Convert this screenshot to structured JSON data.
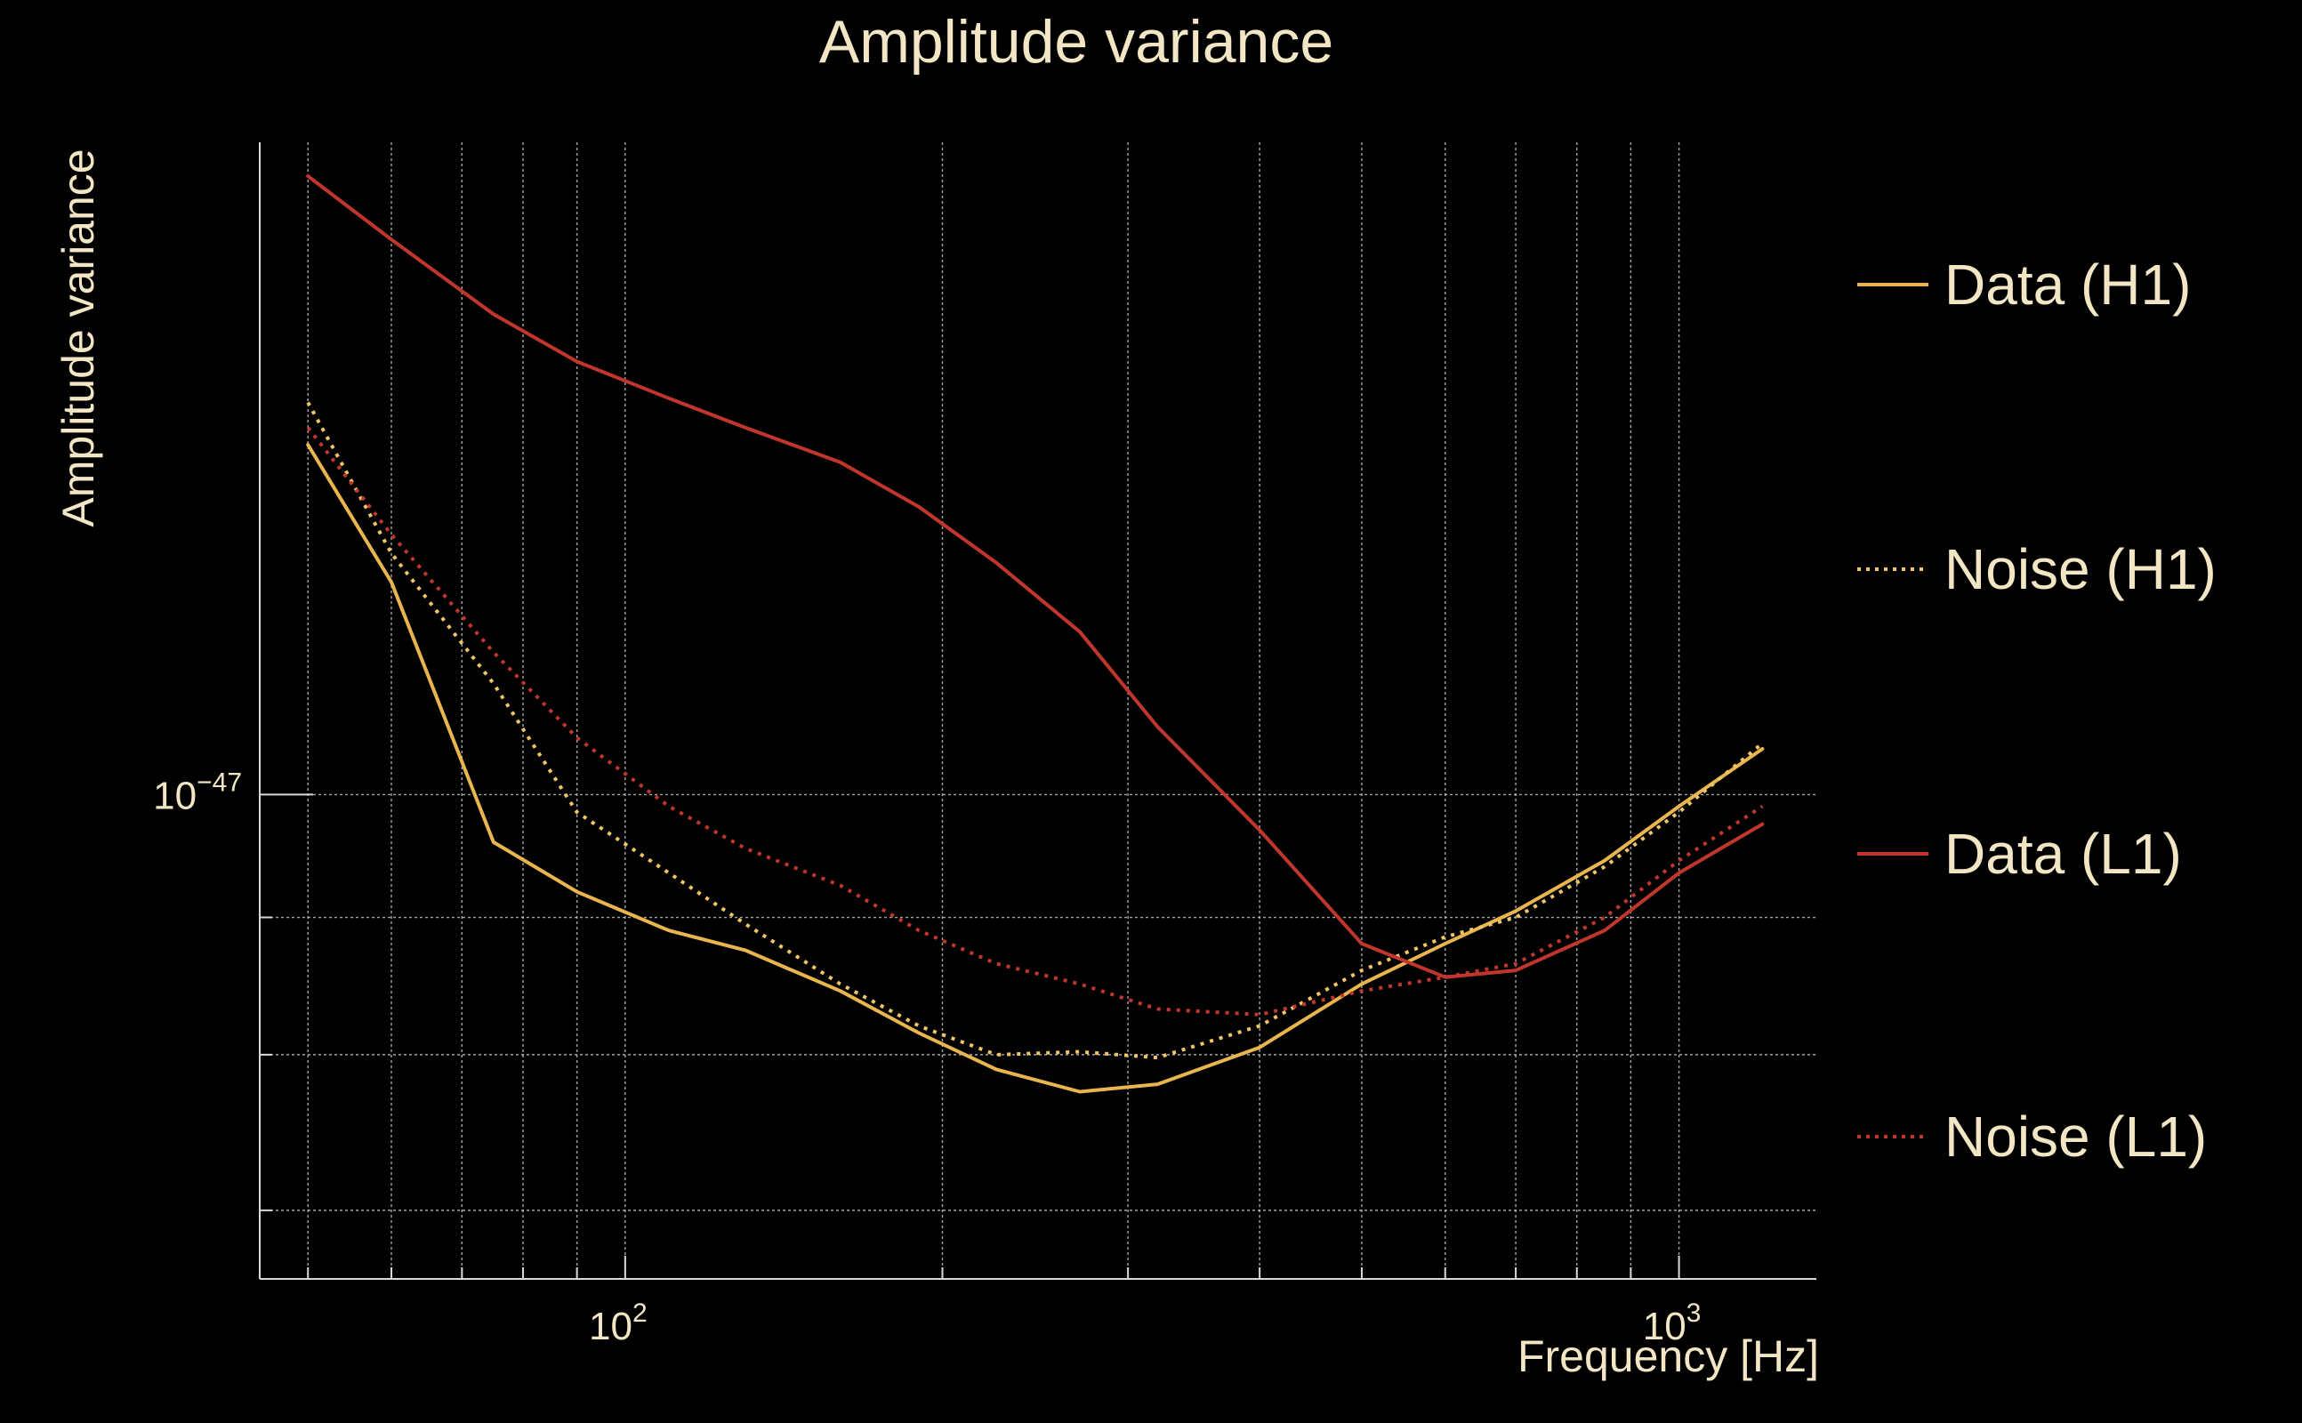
{
  "chart_data": {
    "type": "line",
    "title": "Amplitude variance",
    "xlabel": "Frequency [Hz]",
    "ylabel": "Amplitude variance",
    "xscale": "log",
    "yscale": "log",
    "xlim": [
      45,
      1350
    ],
    "ylim": [
      6.6e-48,
      1.75e-47
    ],
    "grid": true,
    "legend_position": "right",
    "x_ticks": [
      {
        "base": "10",
        "exp": "2",
        "value": 100
      },
      {
        "base": "10",
        "exp": "3",
        "value": 1000
      }
    ],
    "y_ticks": [
      {
        "base": "10",
        "exp": "−47",
        "value": 1e-47
      }
    ],
    "x": [
      50,
      60,
      75,
      90,
      110,
      130,
      160,
      190,
      225,
      270,
      320,
      400,
      500,
      600,
      700,
      850,
      1000,
      1200
    ],
    "series": [
      {
        "name": "Data (H1)",
        "color": "#e9b54f",
        "style": "solid",
        "values": [
          1.35e-47,
          1.2e-47,
          9.6e-48,
          9.2e-48,
          8.9e-48,
          8.75e-48,
          8.45e-48,
          8.15e-48,
          7.9e-48,
          7.75e-48,
          7.8e-48,
          8.05e-48,
          8.5e-48,
          8.8e-48,
          9.05e-48,
          9.45e-48,
          9.9e-48,
          1.04e-47
        ]
      },
      {
        "name": "Noise (H1)",
        "color": "#f0c566",
        "style": "dotted",
        "values": [
          1.4e-47,
          1.23e-47,
          1.1e-47,
          9.85e-48,
          9.35e-48,
          8.95e-48,
          8.5e-48,
          8.2e-48,
          8e-48,
          8.02e-48,
          7.98e-48,
          8.2e-48,
          8.6e-48,
          8.85e-48,
          9e-48,
          9.4e-48,
          9.85e-48,
          1.045e-47
        ]
      },
      {
        "name": "Data (L1)",
        "color": "#c0362c",
        "style": "solid",
        "values": [
          1.7e-47,
          1.61e-47,
          1.51e-47,
          1.45e-47,
          1.405e-47,
          1.37e-47,
          1.33e-47,
          1.28e-47,
          1.22e-47,
          1.15e-47,
          1.06e-47,
          9.7e-48,
          8.8e-48,
          8.55e-48,
          8.6e-48,
          8.9e-48,
          9.35e-48,
          9.75e-48
        ]
      },
      {
        "name": "Noise (L1)",
        "color": "#c0362c",
        "style": "dotted",
        "values": [
          1.37e-47,
          1.25e-47,
          1.13e-47,
          1.05e-47,
          9.9e-48,
          9.55e-48,
          9.25e-48,
          8.9e-48,
          8.65e-48,
          8.5e-48,
          8.32e-48,
          8.28e-48,
          8.45e-48,
          8.55e-48,
          8.65e-48,
          9e-48,
          9.45e-48,
          9.9e-48
        ]
      }
    ]
  }
}
